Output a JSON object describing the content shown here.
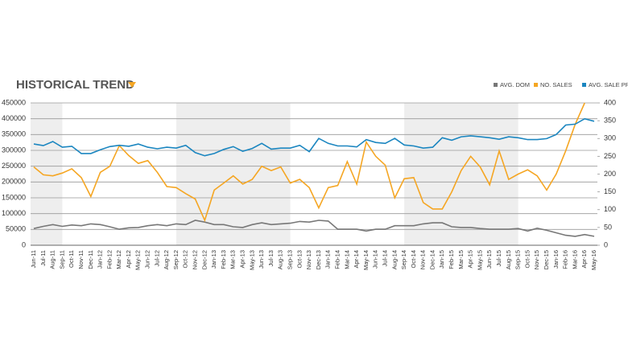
{
  "chart_data": {
    "type": "line",
    "title": "HISTORICAL TREND",
    "categories": [
      "Jun-11",
      "Jul-11",
      "Aug-11",
      "Sep-11",
      "Oct-11",
      "Nov-11",
      "Dec-11",
      "Jan-12",
      "Feb-12",
      "Mar-12",
      "Apr-12",
      "May-12",
      "Jun-12",
      "Jul-12",
      "Aug-12",
      "Sep-12",
      "Oct-12",
      "Nov-12",
      "Dec-12",
      "Jan-13",
      "Feb-13",
      "Mar-13",
      "Apr-13",
      "May-13",
      "Jun-13",
      "Jul-13",
      "Aug-13",
      "Sep-13",
      "Oct-13",
      "Nov-13",
      "Dec-13",
      "Jan-14",
      "Feb-14",
      "Mar-14",
      "Apr-14",
      "May-14",
      "Jun-14",
      "Jul-14",
      "Aug-14",
      "Sep-14",
      "Oct-14",
      "Nov-14",
      "Dec-14",
      "Jan-15",
      "Feb-15",
      "Mar-15",
      "Apr-15",
      "May-15",
      "Jun-15",
      "Jul-15",
      "Aug-15",
      "Sep-15",
      "Oct-15",
      "Nov-15",
      "Dec-15",
      "Jan-16",
      "Feb-16",
      "Mar-16",
      "Apr-16",
      "May-16"
    ],
    "series": [
      {
        "name": "AVG. DOM",
        "color": "#777777",
        "axis": "y2",
        "values": [
          47,
          53,
          58,
          53,
          57,
          55,
          60,
          58,
          52,
          45,
          49,
          50,
          55,
          58,
          55,
          60,
          58,
          70,
          65,
          58,
          58,
          52,
          50,
          58,
          63,
          58,
          60,
          62,
          67,
          65,
          70,
          68,
          45,
          45,
          45,
          40,
          45,
          45,
          55,
          55,
          55,
          60,
          63,
          63,
          52,
          50,
          50,
          47,
          45,
          45,
          45,
          47,
          40,
          48,
          42,
          35,
          28,
          25,
          30,
          25
        ]
      },
      {
        "name": "NO. SALES",
        "color": "#f5a623",
        "axis": "y2",
        "values": [
          220,
          198,
          195,
          203,
          215,
          190,
          137,
          205,
          222,
          280,
          252,
          230,
          238,
          205,
          165,
          162,
          145,
          130,
          70,
          155,
          175,
          195,
          172,
          185,
          222,
          210,
          220,
          175,
          185,
          162,
          105,
          162,
          168,
          235,
          172,
          290,
          250,
          225,
          133,
          187,
          190,
          120,
          102,
          102,
          150,
          210,
          250,
          220,
          170,
          265,
          185,
          200,
          212,
          195,
          155,
          200,
          265,
          340,
          400,
          null
        ]
      },
      {
        "name": "AVG. SALE PRICE",
        "color": "#1b86c0",
        "values": [
          320000,
          315000,
          328000,
          310000,
          313000,
          290000,
          290000,
          302000,
          312000,
          316000,
          313000,
          320000,
          310000,
          305000,
          310000,
          307000,
          316000,
          293000,
          283000,
          290000,
          303000,
          312000,
          297000,
          306000,
          322000,
          304000,
          307000,
          307000,
          316000,
          296000,
          338000,
          322000,
          314000,
          314000,
          311000,
          334000,
          325000,
          322000,
          338000,
          317000,
          314000,
          307000,
          310000,
          340000,
          332000,
          343000,
          346000,
          343000,
          340000,
          335000,
          343000,
          340000,
          334000,
          334000,
          337000,
          350000,
          380000,
          383000,
          400000,
          392000
        ]
      }
    ],
    "ylim": [
      0,
      450000
    ],
    "yticks": [
      0,
      50000,
      100000,
      150000,
      200000,
      250000,
      300000,
      350000,
      400000,
      450000
    ],
    "y2lim": [
      0,
      400
    ],
    "y2ticks": [
      0,
      50,
      100,
      150,
      200,
      250,
      300,
      350,
      400
    ],
    "grid": true
  }
}
